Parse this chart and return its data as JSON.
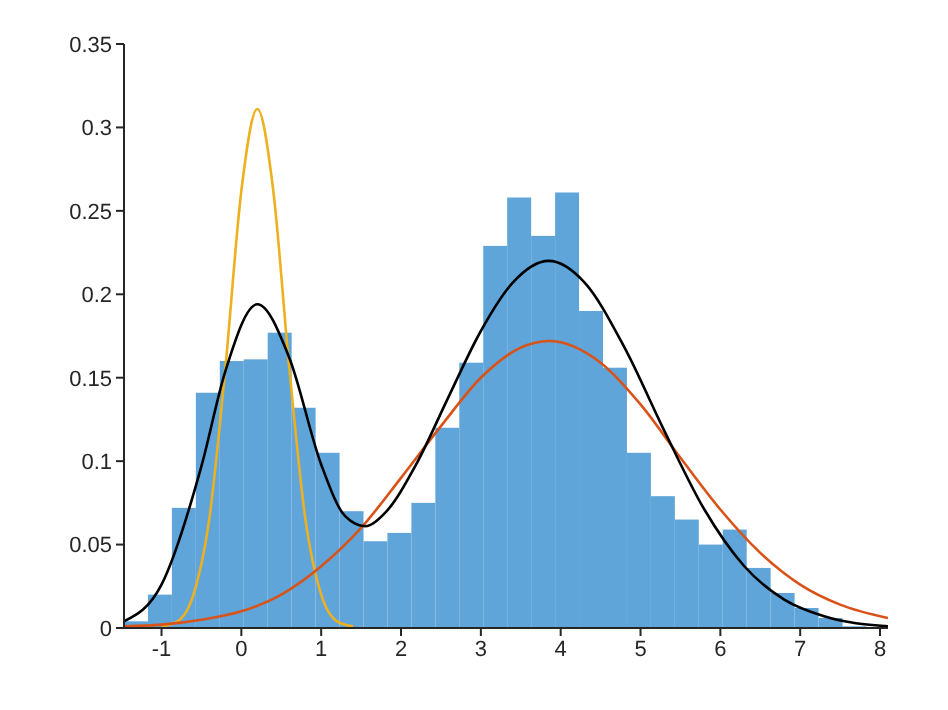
{
  "chart_data": {
    "type": "histogram",
    "bins": [
      -1.47,
      -1.17,
      -0.87,
      -0.57,
      -0.27,
      0.03,
      0.33,
      0.63,
      0.93,
      1.23,
      1.53,
      1.83,
      2.13,
      2.43,
      2.73,
      3.03,
      3.33,
      3.63,
      3.93,
      4.23,
      4.53,
      4.83,
      5.13,
      5.43,
      5.73,
      6.03,
      6.33,
      6.63,
      6.93,
      7.23,
      7.53,
      7.83
    ],
    "values": [
      0.004,
      0.02,
      0.072,
      0.141,
      0.16,
      0.161,
      0.177,
      0.132,
      0.105,
      0.07,
      0.052,
      0.057,
      0.075,
      0.12,
      0.159,
      0.229,
      0.258,
      0.235,
      0.261,
      0.19,
      0.156,
      0.105,
      0.079,
      0.065,
      0.05,
      0.059,
      0.036,
      0.021,
      0.012,
      0.006,
      0.001
    ],
    "color": "#5fa5d9",
    "series": [
      {
        "type": "line",
        "color": "#edb120",
        "x": [
          -1,
          -0.8,
          -0.6,
          -0.4,
          -0.2,
          0,
          0.2,
          0.4,
          0.6,
          0.8,
          1,
          1.2,
          1.4
        ],
        "values": [
          0.001,
          0.004,
          0.02,
          0.066,
          0.156,
          0.262,
          0.311,
          0.262,
          0.156,
          0.066,
          0.02,
          0.004,
          0.001
        ]
      },
      {
        "type": "line",
        "color": "#d95319",
        "x": [
          -1.47,
          -1,
          -0.5,
          0,
          0.5,
          1,
          1.5,
          2,
          2.5,
          3,
          3.5,
          3.85,
          4.5,
          5,
          5.5,
          6,
          6.5,
          7,
          7.5,
          8.1
        ],
        "values": [
          0.001,
          0.002,
          0.005,
          0.01,
          0.02,
          0.037,
          0.06,
          0.09,
          0.121,
          0.15,
          0.168,
          0.172,
          0.159,
          0.134,
          0.102,
          0.071,
          0.045,
          0.026,
          0.014,
          0.006
        ]
      },
      {
        "type": "line",
        "color": "#000000",
        "x": [
          -1.47,
          -1,
          -0.5,
          -0.2,
          0.2,
          0.6,
          1,
          1.3,
          1.55,
          1.8,
          2.2,
          2.6,
          3,
          3.4,
          3.85,
          4.3,
          4.8,
          5.3,
          5.8,
          6.3,
          6.8,
          7.3,
          8.1
        ],
        "values": [
          0.004,
          0.026,
          0.097,
          0.154,
          0.194,
          0.162,
          0.098,
          0.067,
          0.061,
          0.069,
          0.099,
          0.139,
          0.178,
          0.207,
          0.22,
          0.207,
          0.168,
          0.118,
          0.071,
          0.037,
          0.017,
          0.007,
          0.001
        ]
      }
    ],
    "xlim": [
      -1.47,
      8.1
    ],
    "xticks": [
      -1,
      0,
      1,
      2,
      3,
      4,
      5,
      6,
      7,
      8
    ],
    "ylim": [
      0,
      0.35
    ],
    "yticks": [
      0,
      0.05,
      0.1,
      0.15,
      0.2,
      0.25,
      0.3,
      0.35
    ],
    "grid": false
  }
}
